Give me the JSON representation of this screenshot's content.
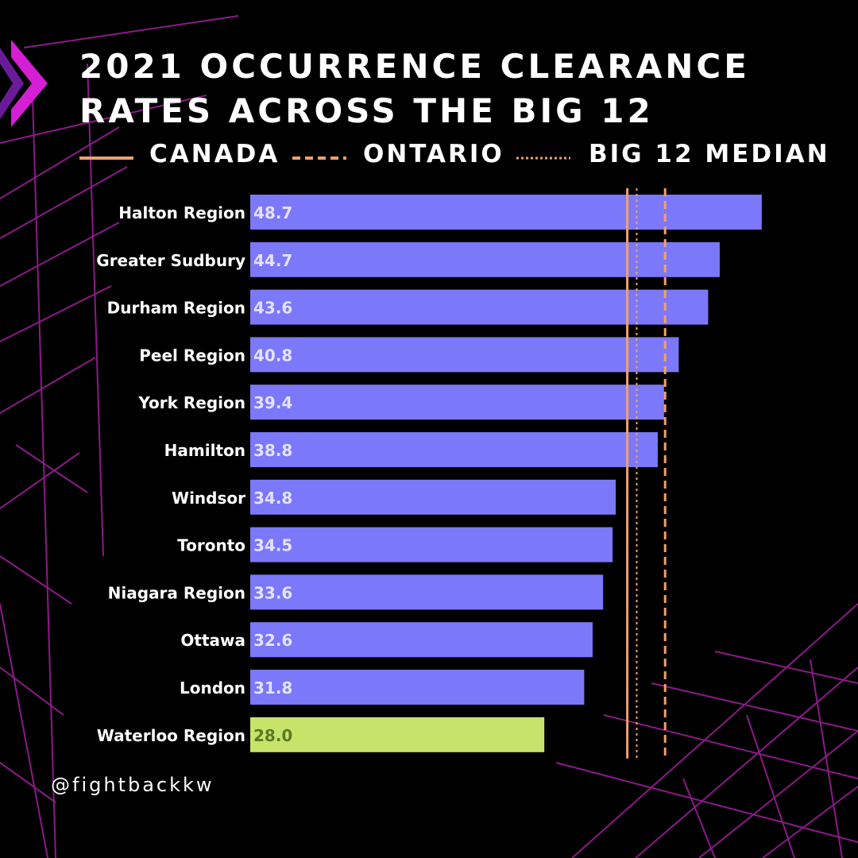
{
  "title_line1": "2021 OCCURRENCE CLEARANCE",
  "title_line2": "RATES ACROSS THE BIG 12",
  "handle": "@fightbackkw",
  "colors": {
    "background": "#000000",
    "grid": "#a51fa0",
    "bar": "#7b78fa",
    "bar_highlight": "#c8e36a",
    "value_label": "#e4e2ff",
    "value_label_highlight": "#5b7a24",
    "reference": "#f2a06a",
    "arrow": "#d41fd4"
  },
  "chart_data": {
    "type": "bar",
    "orientation": "horizontal",
    "title": "2021 OCCURRENCE CLEARANCE RATES ACROSS THE BIG 12",
    "categories": [
      "Halton Region",
      "Greater Sudbury",
      "Durham Region",
      "Peel Region",
      "York Region",
      "Hamilton",
      "Windsor",
      "Toronto",
      "Niagara Region",
      "Ottawa",
      "London",
      "Waterloo Region"
    ],
    "values": [
      48.7,
      44.7,
      43.6,
      40.8,
      39.4,
      38.8,
      34.8,
      34.5,
      33.6,
      32.6,
      31.8,
      28.0
    ],
    "value_labels": [
      "48.7",
      "44.7",
      "43.6",
      "40.8",
      "39.4",
      "38.8",
      "34.8",
      "34.5",
      "33.6",
      "32.6",
      "31.8",
      "28.0"
    ],
    "highlight": "Waterloo Region",
    "xlim": [
      0,
      50
    ],
    "reference_lines": [
      {
        "name": "CANADA",
        "value": 35.9,
        "style": "solid"
      },
      {
        "name": "ONTARIO",
        "value": 39.5,
        "style": "dashed"
      },
      {
        "name": "BIG 12 MEDIAN",
        "value": 36.8,
        "style": "dotted"
      }
    ],
    "legend_position": "top"
  }
}
